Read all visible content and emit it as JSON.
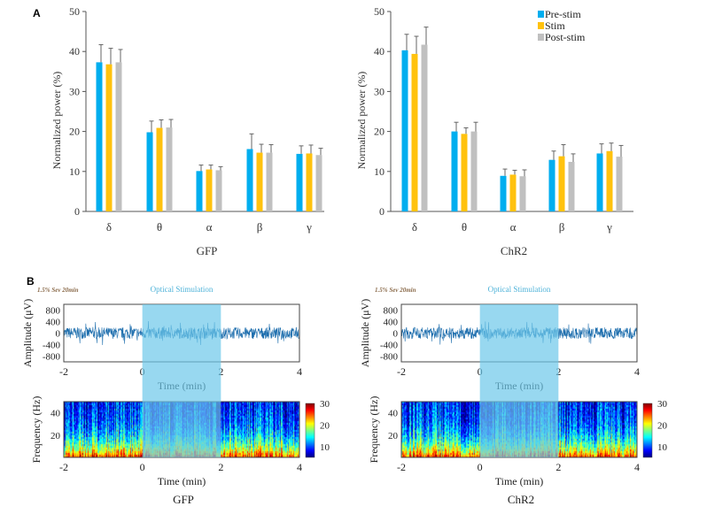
{
  "panel_labels": {
    "a": "A",
    "b": "B"
  },
  "colors": {
    "pre": "#00aeef",
    "stim": "#ffc20e",
    "post": "#c0c0c0",
    "stim_shade": "#6cc7ea",
    "trace": "#1f6fae"
  },
  "chart_data": [
    {
      "type": "bar",
      "title": "GFP",
      "xlabel": "GFP",
      "ylabel": "Normalized power (%)",
      "ylim": [
        0,
        50
      ],
      "yticks": [
        "0",
        "10",
        "20",
        "30",
        "40",
        "50"
      ],
      "categories": [
        "δ",
        "θ",
        "α",
        "β",
        "γ"
      ],
      "series": [
        {
          "name": "Pre-stim",
          "values": [
            37.3,
            19.8,
            10.1,
            15.6,
            14.4
          ],
          "errors": [
            4.4,
            2.8,
            1.5,
            3.8,
            2.0
          ]
        },
        {
          "name": "Stim",
          "values": [
            36.8,
            20.9,
            10.5,
            14.7,
            14.5
          ],
          "errors": [
            4.0,
            2.0,
            1.1,
            2.1,
            2.1
          ]
        },
        {
          "name": "Post-stim",
          "values": [
            37.3,
            21.0,
            10.3,
            14.7,
            14.1
          ],
          "errors": [
            3.2,
            2.0,
            0.9,
            2.0,
            1.7
          ]
        }
      ]
    },
    {
      "type": "bar",
      "title": "ChR2",
      "xlabel": "ChR2",
      "ylabel": "Normalized power (%)",
      "ylim": [
        0,
        50
      ],
      "yticks": [
        "0",
        "10",
        "20",
        "30",
        "40",
        "50"
      ],
      "categories": [
        "δ",
        "θ",
        "α",
        "β",
        "γ"
      ],
      "legend": {
        "placement": "top-right",
        "entries": [
          "Pre-stim",
          "Stim",
          "Post-stim"
        ]
      },
      "series": [
        {
          "name": "Pre-stim",
          "values": [
            40.3,
            20.0,
            8.9,
            12.9,
            14.5
          ],
          "errors": [
            4.0,
            2.3,
            1.7,
            2.2,
            2.4
          ]
        },
        {
          "name": "Stim",
          "values": [
            39.4,
            19.4,
            9.2,
            13.8,
            15.1
          ],
          "errors": [
            4.4,
            1.5,
            1.1,
            2.9,
            2.0
          ]
        },
        {
          "name": "Post-stim",
          "values": [
            41.7,
            20.0,
            8.8,
            12.4,
            13.7
          ],
          "errors": [
            4.4,
            2.3,
            1.6,
            2.0,
            2.8
          ]
        }
      ]
    }
  ],
  "eeg_panels": [
    {
      "group": "GFP",
      "condition": "1.5% Sev 20min",
      "stim_label": "Optical Stimulation",
      "stim_window": [
        0,
        2
      ],
      "amp_ylabel": "Amplitude (μV)",
      "amp_yticks": [
        "800",
        "400",
        "0",
        "-400",
        "-800"
      ],
      "amp_ylim": [
        -1000,
        1000
      ],
      "time_ticks": [
        "-2",
        "0",
        "2",
        "4"
      ],
      "xlim": [
        -2,
        4
      ],
      "xlabel": "Time (min)",
      "freq_ylabel": "Frequency (Hz)",
      "freq_yticks": [
        "40",
        "20"
      ],
      "freq_ylim": [
        0,
        50
      ],
      "colorbar_ticks": [
        "30",
        "20",
        "10"
      ],
      "colorbar_range": [
        5,
        30
      ]
    },
    {
      "group": "ChR2",
      "condition": "1.5% Sev 20min",
      "stim_label": "Optical Stimulation",
      "stim_window": [
        0,
        2
      ],
      "amp_ylabel": "Amplitude (μV)",
      "amp_yticks": [
        "800",
        "400",
        "0",
        "-400",
        "-800"
      ],
      "amp_ylim": [
        -1000,
        1000
      ],
      "time_ticks": [
        "-2",
        "0",
        "2",
        "4"
      ],
      "xlim": [
        -2,
        4
      ],
      "xlabel": "Time (min)",
      "freq_ylabel": "Frequency (Hz)",
      "freq_yticks": [
        "40",
        "20"
      ],
      "freq_ylim": [
        0,
        50
      ],
      "colorbar_ticks": [
        "30",
        "20",
        "10"
      ],
      "colorbar_range": [
        5,
        30
      ]
    }
  ]
}
